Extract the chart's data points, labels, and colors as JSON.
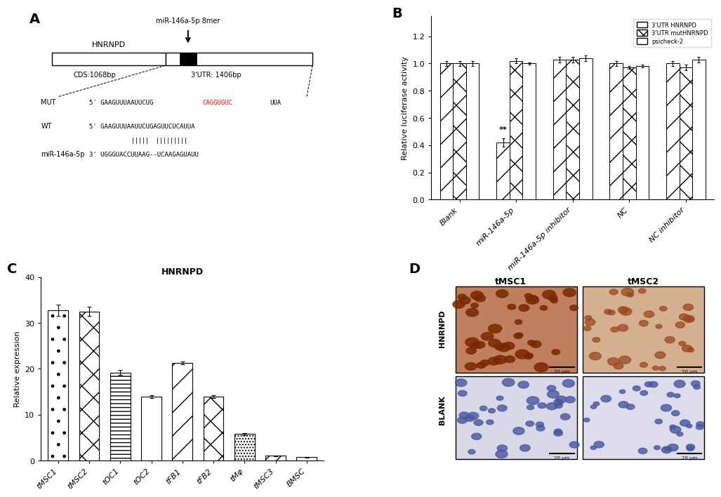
{
  "panel_B": {
    "categories": [
      "Blank",
      "miR-146a-5p",
      "miR-146a-5p inhibitor",
      "NC",
      "NC inhibitor"
    ],
    "series_3UTR_HNRNPD": [
      1.0,
      0.42,
      1.03,
      1.0,
      1.0
    ],
    "series_3UTR_mut": [
      1.0,
      1.02,
      1.03,
      0.97,
      0.97
    ],
    "series_psicheck2": [
      1.0,
      1.0,
      1.04,
      0.98,
      1.03
    ],
    "err_3UTR_HNRNPD": [
      0.02,
      0.03,
      0.02,
      0.02,
      0.02
    ],
    "err_3UTR_mut": [
      0.02,
      0.02,
      0.02,
      0.01,
      0.02
    ],
    "err_psicheck2": [
      0.02,
      0.01,
      0.02,
      0.01,
      0.02
    ],
    "ylabel": "Relative luciferase activity",
    "ylim": [
      0,
      1.35
    ],
    "yticks": [
      0.0,
      0.2,
      0.4,
      0.6,
      0.8,
      1.0,
      1.2
    ],
    "legend_labels": [
      "3'UTR HNRNPD",
      "3'UTR mutHNRNPD",
      "psicheck-2"
    ]
  },
  "panel_C": {
    "categories": [
      "tMSC1",
      "tMSC2",
      "tOC1",
      "tOC2",
      "tFB1",
      "tFB2",
      "tMφ",
      "tMSC3",
      "BMSC"
    ],
    "values": [
      32.8,
      32.5,
      19.2,
      14.0,
      21.3,
      14.0,
      5.8,
      1.1,
      0.8
    ],
    "errors": [
      1.2,
      1.0,
      0.5,
      0.3,
      0.25,
      0.3,
      0.3,
      0.1,
      0.1
    ],
    "title": "HNRNPD",
    "ylabel": "Relative expression",
    "ylim": [
      0,
      40
    ],
    "yticks": [
      0,
      10,
      20,
      30,
      40
    ],
    "hatches": [
      ".",
      "x",
      "---",
      "",
      "/",
      "x",
      "....",
      "//",
      ""
    ]
  },
  "panel_A": {
    "gene_name": "HNRNPD",
    "cds_label": "CDS:1068bp",
    "utr_label": "3'UTR: 1406bp",
    "mirna_label": "miR-146a-5p 8mer",
    "mut_label": "MUT",
    "wt_label": "WT",
    "mirna_name_label": "miR-146a-5p",
    "mut_seq_before": "5' GAAGUUUAAUUCUG",
    "mut_seq_red": "CAGGUGUC",
    "mut_seq_after": "UUA",
    "wt_seq": "5' GAAGUUUAAUUCUGAGUUCUCAUUA",
    "pair_bars": "            |||||  |||||||||",
    "mirna_seq": "3' UGGGUACCUUAAG--UCAAGAGUAUU"
  },
  "panel_D": {
    "title_tMSC1": "tMSC1",
    "title_tMSC2": "tMSC2",
    "row_label_HNRNPD": "HNRNPD",
    "row_label_BLANK": "BLANK",
    "scale_bar": "20 μm"
  },
  "background_color": "#ffffff"
}
